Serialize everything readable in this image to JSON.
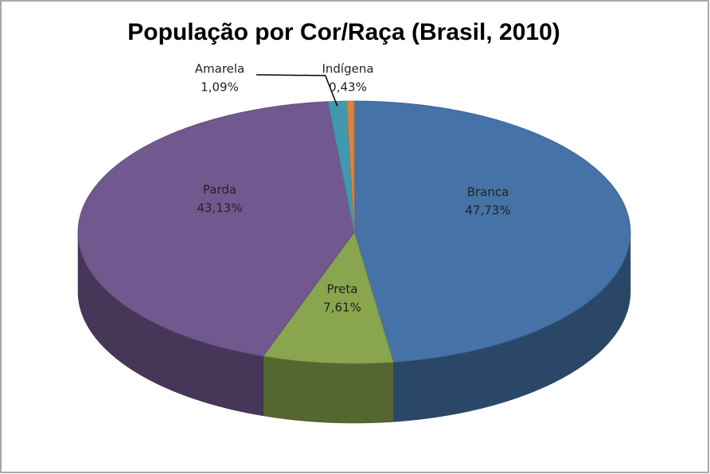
{
  "chart_data": {
    "type": "pie3d",
    "title": "População por Cor/Raça (Brasil, 2010)",
    "categories": [
      "Branca",
      "Preta",
      "Parda",
      "Amarela",
      "Indígena"
    ],
    "values": [
      47.73,
      7.61,
      43.13,
      1.09,
      0.43
    ],
    "value_labels": [
      "47,73%",
      "7,61%",
      "43,13%",
      "1,09%",
      "0,43%"
    ],
    "colors": [
      "#4572a7",
      "#89a54e",
      "#71588f",
      "#4198af",
      "#db843d"
    ]
  }
}
